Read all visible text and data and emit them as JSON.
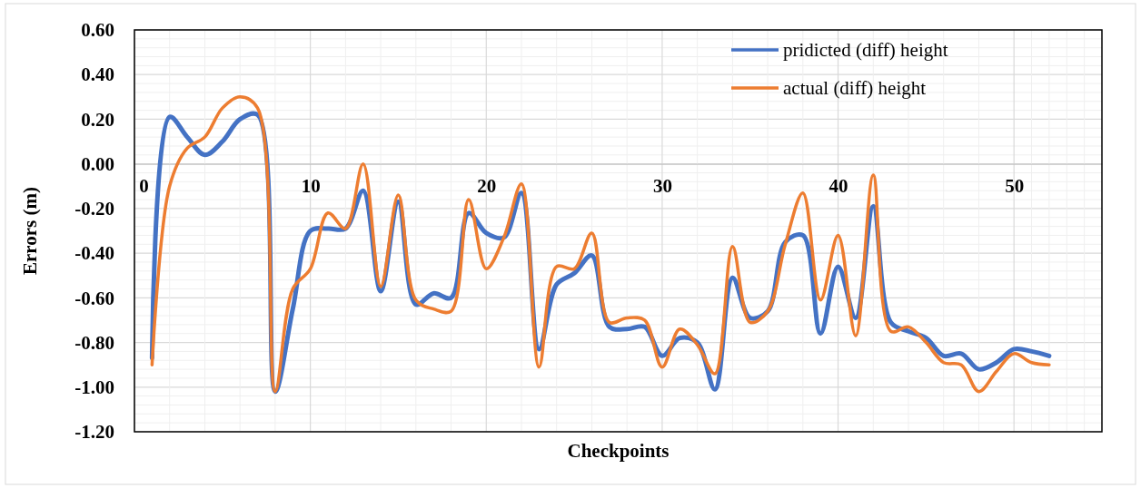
{
  "chart_data": {
    "type": "line",
    "xlabel": "Checkpoints",
    "ylabel": "Errors (m)",
    "x": [
      1,
      2,
      3,
      4,
      5,
      6,
      7,
      8,
      9,
      10,
      11,
      12,
      13,
      14,
      15,
      16,
      17,
      18,
      19,
      20,
      21,
      22,
      23,
      24,
      25,
      26,
      27,
      28,
      29,
      30,
      31,
      32,
      33,
      34,
      35,
      36,
      37,
      38,
      39,
      40,
      41,
      42,
      43,
      44,
      45,
      46,
      47,
      48,
      49,
      50,
      51,
      52
    ],
    "series": [
      {
        "name": "pridicted (diff) height",
        "color": "#4472c4",
        "values": [
          -0.87,
          0.21,
          0.12,
          0.04,
          0.1,
          0.2,
          0.22,
          -1.02,
          -0.65,
          -0.3,
          -0.29,
          -0.29,
          -0.12,
          -0.57,
          -0.17,
          -0.63,
          -0.58,
          -0.6,
          -0.22,
          -0.31,
          -0.33,
          -0.13,
          -0.83,
          -0.54,
          -0.49,
          -0.41,
          -0.73,
          -0.74,
          -0.73,
          -0.86,
          -0.78,
          -0.8,
          -1.01,
          -0.51,
          -0.69,
          -0.66,
          -0.35,
          -0.32,
          -0.76,
          -0.46,
          -0.69,
          -0.19,
          -0.71,
          -0.75,
          -0.78,
          -0.86,
          -0.85,
          -0.92,
          -0.89,
          -0.83,
          -0.84,
          -0.86
        ]
      },
      {
        "name": "actual (diff) height",
        "color": "#ed7d31",
        "values": [
          -0.9,
          -0.1,
          0.07,
          0.12,
          0.25,
          0.3,
          0.25,
          -1.02,
          -0.56,
          -0.47,
          -0.22,
          -0.29,
          0.0,
          -0.55,
          -0.14,
          -0.61,
          -0.65,
          -0.66,
          -0.16,
          -0.47,
          -0.33,
          -0.09,
          -0.91,
          -0.46,
          -0.47,
          -0.31,
          -0.71,
          -0.69,
          -0.7,
          -0.91,
          -0.74,
          -0.81,
          -0.94,
          -0.37,
          -0.71,
          -0.66,
          -0.36,
          -0.13,
          -0.61,
          -0.32,
          -0.77,
          -0.05,
          -0.75,
          -0.73,
          -0.8,
          -0.89,
          -0.9,
          -1.02,
          -0.93,
          -0.85,
          -0.89,
          -0.9
        ]
      }
    ],
    "xlim": [
      0,
      55
    ],
    "xticks": [
      0,
      10,
      20,
      30,
      40,
      50
    ],
    "ylim": [
      -1.2,
      0.6
    ],
    "yticks": [
      {
        "value": -1.2,
        "label": "-1.20"
      },
      {
        "value": -1.0,
        "label": "-1.00"
      },
      {
        "value": -0.8,
        "label": "-0.80"
      },
      {
        "value": -0.6,
        "label": "-0.60"
      },
      {
        "value": -0.4,
        "label": "-0.40"
      },
      {
        "value": -0.2,
        "label": "-0.20"
      },
      {
        "value": 0,
        "label": "0.00"
      },
      {
        "value": 0.2,
        "label": "0.20"
      },
      {
        "value": 0.4,
        "label": "0.40"
      },
      {
        "value": 0.6,
        "label": "0.60"
      }
    ],
    "grid": true,
    "legend": "top right",
    "marker": "none",
    "line_style": "solid"
  }
}
